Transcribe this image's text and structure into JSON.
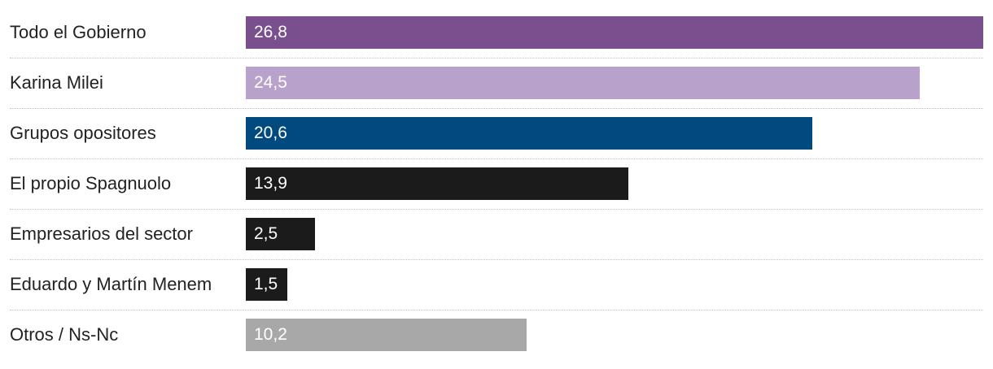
{
  "chart_data": {
    "type": "bar",
    "orientation": "horizontal",
    "categories": [
      "Todo el Gobierno",
      "Karina Milei",
      "Grupos opositores",
      "El propio Spagnuolo",
      "Empresarios del sector",
      "Eduardo y Martín Menem",
      "Otros / Ns-Nc"
    ],
    "values": [
      26.8,
      24.5,
      20.6,
      13.9,
      2.5,
      1.5,
      10.2
    ],
    "value_labels": [
      "26,8",
      "24,5",
      "20,6",
      "13,9",
      "2,5",
      "1,5",
      "10,2"
    ],
    "colors": [
      "#7a4f8e",
      "#b8a2cb",
      "#004a80",
      "#1b1b1b",
      "#1b1b1b",
      "#1b1b1b",
      "#a8a8a8"
    ],
    "xlim": [
      0,
      26.8
    ],
    "grid": false,
    "title": "",
    "xlabel": "",
    "ylabel": ""
  }
}
